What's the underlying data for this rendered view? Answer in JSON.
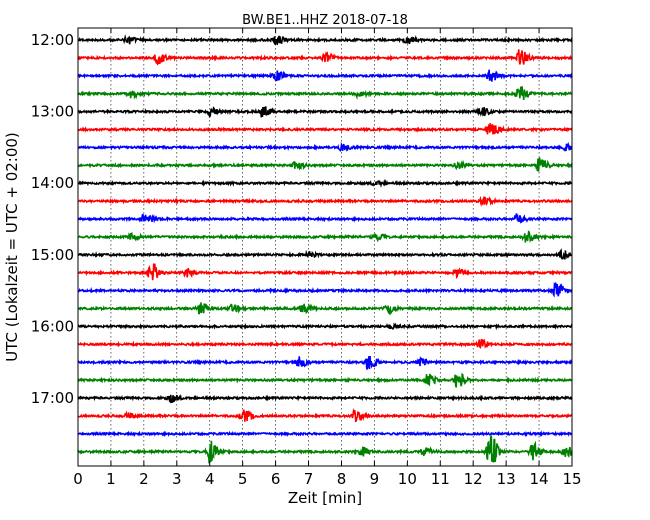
{
  "chart_data": {
    "type": "line",
    "title": "BW.BE1..HHZ 2018-07-18",
    "xlabel": "Zeit  [min]",
    "ylabel": "UTC (Lokalzeit = UTC + 02:00)",
    "xlim": [
      0,
      15
    ],
    "x_ticks": [
      "0",
      "1",
      "2",
      "3",
      "4",
      "5",
      "6",
      "7",
      "8",
      "9",
      "10",
      "11",
      "12",
      "13",
      "14",
      "15"
    ],
    "y_ticks": [
      {
        "label": "12:00",
        "trace": 0
      },
      {
        "label": "13:00",
        "trace": 4
      },
      {
        "label": "14:00",
        "trace": 8
      },
      {
        "label": "15:00",
        "trace": 12
      },
      {
        "label": "16:00",
        "trace": 16
      },
      {
        "label": "17:00",
        "trace": 20
      }
    ],
    "grid": "vertical dotted",
    "series_colors": [
      "#000000",
      "#ff0000",
      "#0000ff",
      "#008000"
    ],
    "traces": [
      {
        "start": "12:00",
        "color": "#000000",
        "events": [
          {
            "t": 1.5,
            "a": 0.25
          },
          {
            "t": 6.0,
            "a": 0.35
          },
          {
            "t": 10.0,
            "a": 0.25
          }
        ]
      },
      {
        "start": "12:15",
        "color": "#ff0000",
        "events": [
          {
            "t": 2.4,
            "a": 0.4
          },
          {
            "t": 7.5,
            "a": 0.3
          },
          {
            "t": 13.4,
            "a": 0.6
          }
        ]
      },
      {
        "start": "12:30",
        "color": "#0000ff",
        "events": [
          {
            "t": 6.0,
            "a": 0.4
          },
          {
            "t": 12.5,
            "a": 0.4
          }
        ]
      },
      {
        "start": "12:45",
        "color": "#008000",
        "events": [
          {
            "t": 1.6,
            "a": 0.3
          },
          {
            "t": 8.5,
            "a": 0.2
          },
          {
            "t": 13.4,
            "a": 0.55
          }
        ]
      },
      {
        "start": "13:00",
        "color": "#000000",
        "events": [
          {
            "t": 4.0,
            "a": 0.3
          },
          {
            "t": 5.6,
            "a": 0.4
          },
          {
            "t": 12.2,
            "a": 0.35
          }
        ]
      },
      {
        "start": "13:15",
        "color": "#ff0000",
        "events": [
          {
            "t": 12.5,
            "a": 0.6
          }
        ]
      },
      {
        "start": "13:30",
        "color": "#0000ff",
        "events": [
          {
            "t": 8.0,
            "a": 0.2
          },
          {
            "t": 14.8,
            "a": 0.2
          }
        ]
      },
      {
        "start": "13:45",
        "color": "#008000",
        "events": [
          {
            "t": 6.6,
            "a": 0.25
          },
          {
            "t": 11.5,
            "a": 0.2
          },
          {
            "t": 14.0,
            "a": 0.5
          }
        ]
      },
      {
        "start": "14:00",
        "color": "#000000",
        "events": [
          {
            "t": 9.0,
            "a": 0.15
          }
        ]
      },
      {
        "start": "14:15",
        "color": "#ff0000",
        "events": [
          {
            "t": 12.3,
            "a": 0.25
          }
        ]
      },
      {
        "start": "14:30",
        "color": "#0000ff",
        "events": [
          {
            "t": 2.0,
            "a": 0.35
          },
          {
            "t": 13.3,
            "a": 0.35
          }
        ]
      },
      {
        "start": "14:45",
        "color": "#008000",
        "events": [
          {
            "t": 1.6,
            "a": 0.25
          },
          {
            "t": 9.0,
            "a": 0.25
          },
          {
            "t": 13.6,
            "a": 0.35
          }
        ]
      },
      {
        "start": "15:00",
        "color": "#000000",
        "events": [
          {
            "t": 7.0,
            "a": 0.15
          },
          {
            "t": 14.7,
            "a": 0.3
          }
        ]
      },
      {
        "start": "15:15",
        "color": "#ff0000",
        "events": [
          {
            "t": 2.2,
            "a": 0.75
          },
          {
            "t": 3.3,
            "a": 0.3
          },
          {
            "t": 11.5,
            "a": 0.25
          }
        ]
      },
      {
        "start": "15:30",
        "color": "#0000ff",
        "events": [
          {
            "t": 14.5,
            "a": 0.55
          }
        ]
      },
      {
        "start": "15:45",
        "color": "#008000",
        "events": [
          {
            "t": 3.7,
            "a": 0.45
          },
          {
            "t": 4.7,
            "a": 0.3
          },
          {
            "t": 6.8,
            "a": 0.3
          },
          {
            "t": 9.4,
            "a": 0.3
          }
        ]
      },
      {
        "start": "16:00",
        "color": "#000000",
        "events": [
          {
            "t": 9.5,
            "a": 0.15
          }
        ]
      },
      {
        "start": "16:15",
        "color": "#ff0000",
        "events": [
          {
            "t": 12.2,
            "a": 0.3
          }
        ]
      },
      {
        "start": "16:30",
        "color": "#0000ff",
        "events": [
          {
            "t": 6.7,
            "a": 0.35
          },
          {
            "t": 8.8,
            "a": 0.55
          },
          {
            "t": 10.4,
            "a": 0.25
          }
        ]
      },
      {
        "start": "16:45",
        "color": "#008000",
        "events": [
          {
            "t": 10.6,
            "a": 0.45
          },
          {
            "t": 11.5,
            "a": 0.55
          }
        ]
      },
      {
        "start": "17:00",
        "color": "#000000",
        "events": [
          {
            "t": 2.8,
            "a": 0.3
          }
        ]
      },
      {
        "start": "17:15",
        "color": "#ff0000",
        "events": [
          {
            "t": 1.5,
            "a": 0.2
          },
          {
            "t": 5.0,
            "a": 0.4
          },
          {
            "t": 8.4,
            "a": 0.35
          }
        ]
      },
      {
        "start": "17:30",
        "color": "#0000ff",
        "events": []
      },
      {
        "start": "17:45",
        "color": "#008000",
        "events": [
          {
            "t": 4.0,
            "a": 0.9
          },
          {
            "t": 8.6,
            "a": 0.3
          },
          {
            "t": 10.5,
            "a": 0.3
          },
          {
            "t": 12.5,
            "a": 1.2
          },
          {
            "t": 13.8,
            "a": 0.6
          },
          {
            "t": 14.8,
            "a": 0.4
          }
        ]
      }
    ]
  }
}
